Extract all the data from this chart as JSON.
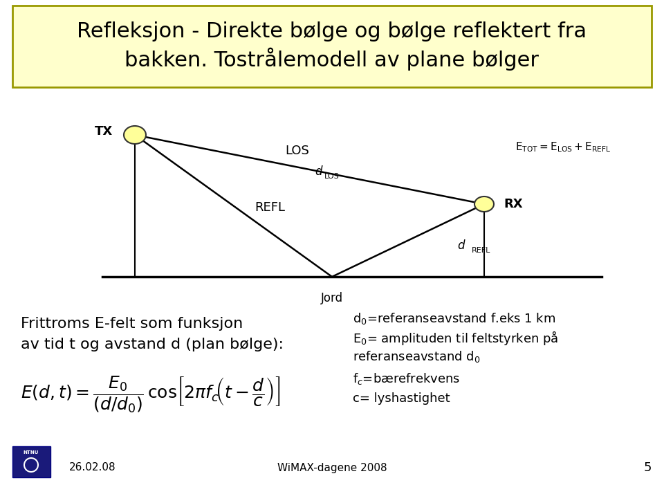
{
  "title_line1": "Refleksjon - Direkte bølge og bølge reflektert fra",
  "title_line2": "bakken. Tostrålemodell av plane bølger",
  "title_bg": "#ffffcc",
  "title_border": "#999900",
  "bg_color": "#ffffff",
  "tx_label": "TX",
  "rx_label": "RX",
  "los_label": "LOS",
  "refl_label": "REFL",
  "d_los_label": "d",
  "d_los_sub": "LOS",
  "d_refl_label": "d",
  "d_refl_sub": "REFL",
  "jord_label": "Jord",
  "etot_label": "E",
  "etot_sub": "TOT",
  "etot_eq": "=E",
  "elos_sub": "LOS",
  "eplus": "+E",
  "erefl_sub": "REFL",
  "text_left_line1": "Frittroms E-felt som funksjon",
  "text_left_line2": "av tid t og avstand d (plan bølge):",
  "formula": "E(d,t) = \\frac{E_0}{(d/d_0)} \\cos\\left[2\\pi f_c \\left(t - \\frac{d}{c}\\right)\\right]",
  "right_text": [
    "d$_0$=referanseavstand f.eks 1 km",
    "E$_0$= amplituden til feltstyrken på",
    "referanseavstand d$_0$",
    "f$_c$=bærefrekvens",
    "c= lyshastighet"
  ],
  "footer_left": "26.02.08",
  "footer_center": "WiMAX-dagene 2008",
  "footer_page": "5",
  "ellipse_color": "#ffff99",
  "line_color": "#000000",
  "ground_color": "#000000"
}
